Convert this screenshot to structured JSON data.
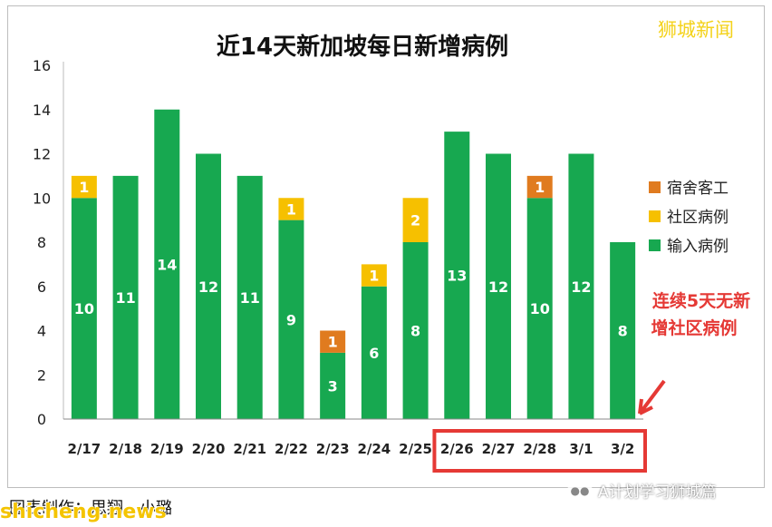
{
  "watermark": "狮城新闻",
  "annotation": [
    "连续5天无新",
    "增社区病例"
  ],
  "footer": {
    "credit": "图表制作：思翔、小璐",
    "site": "shicheng.news",
    "wechat_account": "A计划学习狮城篇",
    "wechat_icon": "wechat-icon"
  },
  "colors": {
    "dormitory": "#e07b1f",
    "community": "#f6c000",
    "imported": "#17a850",
    "annotation": "#e53935",
    "highlight_box": "#e53935",
    "watermark": "#f4d21a"
  },
  "chart_data": {
    "type": "bar",
    "stacked": true,
    "title": "近14天新加坡每日新增病例",
    "categories": [
      "2/17",
      "2/18",
      "2/19",
      "2/20",
      "2/21",
      "2/22",
      "2/23",
      "2/24",
      "2/25",
      "2/26",
      "2/27",
      "2/28",
      "3/1",
      "3/2"
    ],
    "series": [
      {
        "name": "输入病例",
        "values": [
          10,
          11,
          14,
          12,
          11,
          9,
          3,
          6,
          8,
          13,
          12,
          10,
          12,
          8
        ]
      },
      {
        "name": "社区病例",
        "values": [
          1,
          0,
          0,
          0,
          0,
          1,
          0,
          1,
          2,
          0,
          0,
          0,
          0,
          0
        ]
      },
      {
        "name": "宿舍客工",
        "values": [
          0,
          0,
          0,
          0,
          0,
          0,
          1,
          0,
          0,
          0,
          0,
          1,
          0,
          0
        ]
      }
    ],
    "legend_order": [
      "宿舍客工",
      "社区病例",
      "输入病例"
    ],
    "legend_position": "right",
    "ylim": [
      0,
      16
    ],
    "yticks": [
      0,
      2,
      4,
      6,
      8,
      10,
      12,
      14,
      16
    ],
    "grid": false,
    "highlighted_categories": [
      "2/26",
      "2/27",
      "2/28",
      "3/1",
      "3/2"
    ]
  }
}
